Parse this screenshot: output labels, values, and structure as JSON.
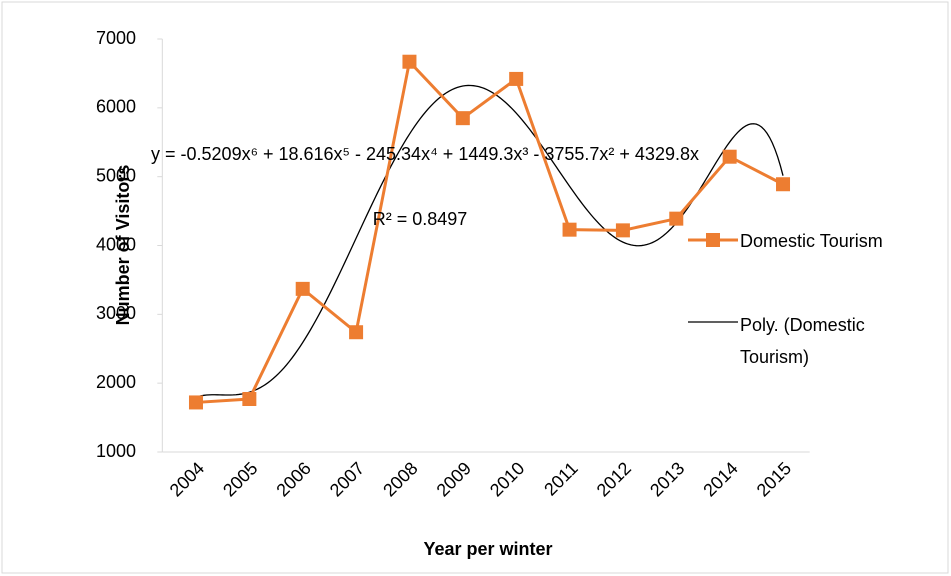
{
  "chart_data": {
    "type": "line",
    "categories": [
      "2004",
      "2005",
      "2006",
      "2007",
      "2008",
      "2009",
      "2010",
      "2011",
      "2012",
      "2013",
      "2014",
      "2015"
    ],
    "series": [
      {
        "name": "Domestic Tourism",
        "color": "#ED7D31",
        "values": [
          1720,
          1770,
          3370,
          2740,
          6670,
          5850,
          6420,
          4230,
          4220,
          4390,
          5290,
          4890
        ]
      }
    ],
    "trendline": {
      "name": "Poly. (Domestic Tourism)",
      "color": "#000000",
      "coefficients": [
        -0.5209,
        18.616,
        -245.34,
        1449.3,
        -3755.7,
        4329.8
      ],
      "equation": "y = -0.5209x⁶ + 18.616x⁵ - 245.34x⁴ + 1449.3x³ - 3755.7x² + 4329.8x",
      "r_squared": "R² = 0.8497"
    },
    "xlabel": "Year per winter",
    "ylabel": "Number of Visitors",
    "ylim": [
      1000,
      7000
    ],
    "yticks": [
      1000,
      2000,
      3000,
      4000,
      5000,
      6000,
      7000
    ],
    "grid": false
  }
}
